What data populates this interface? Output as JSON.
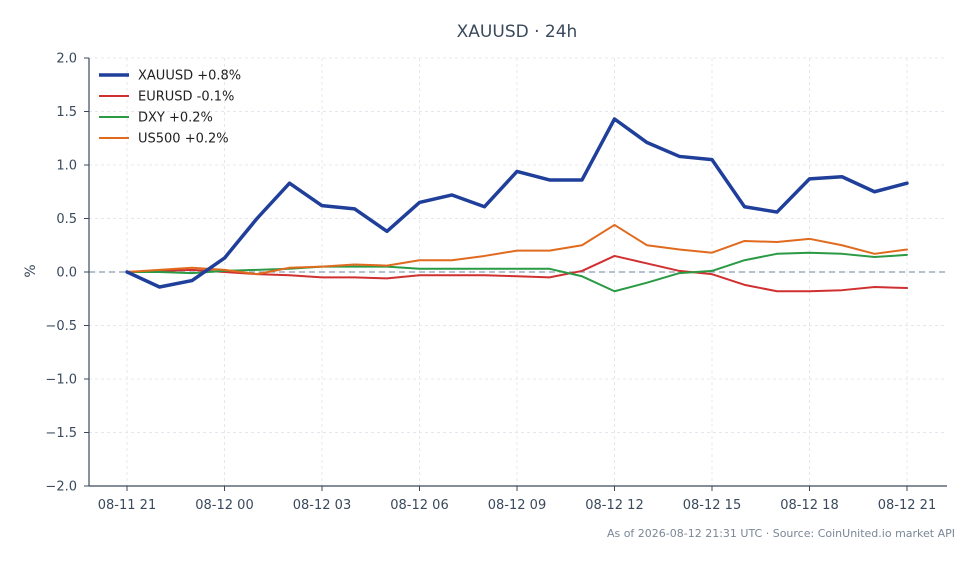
{
  "chart_data": {
    "type": "line",
    "title": "XAUUSD · 24h",
    "ylabel": "%",
    "xlabel": "",
    "ylim": [
      -2.0,
      2.0
    ],
    "yticks": [
      "2.0",
      "1.5",
      "1.0",
      "0.5",
      "0.0",
      "−0.5",
      "−1.0",
      "−1.5",
      "−2.0"
    ],
    "ytick_values": [
      2.0,
      1.5,
      1.0,
      0.5,
      0.0,
      -0.5,
      -1.0,
      -1.5,
      -2.0
    ],
    "xticks": [
      "08-11 21",
      "08-12 00",
      "08-12 03",
      "08-12 06",
      "08-12 09",
      "08-12 12",
      "08-12 15",
      "08-12 18",
      "08-12 21"
    ],
    "xtick_hours": [
      0,
      3,
      6,
      9,
      12,
      15,
      18,
      21,
      24
    ],
    "x_hours": [
      0,
      1,
      2,
      3,
      4,
      5,
      6,
      7,
      8,
      9,
      10,
      11,
      12,
      13,
      14,
      15,
      16,
      17,
      18,
      19,
      20,
      21,
      22,
      23,
      24
    ],
    "grid": true,
    "zero_line": true,
    "legend_position": "top-left",
    "footer": "As of 2026-08-12 21:31 UTC · Source: CoinUnited.io market API",
    "series": [
      {
        "name": "XAUUSD +0.8%",
        "color": "#1f3f9a",
        "width": 3.5,
        "values": [
          0.0,
          -0.14,
          -0.08,
          0.13,
          0.5,
          0.83,
          0.62,
          0.59,
          0.38,
          0.65,
          0.72,
          0.61,
          0.94,
          0.86,
          0.86,
          1.43,
          1.21,
          1.08,
          1.05,
          0.61,
          0.56,
          0.87,
          0.89,
          0.75,
          0.83
        ]
      },
      {
        "name": "EURUSD -0.1%",
        "color": "#d03030",
        "width": 2,
        "values": [
          0.0,
          0.01,
          0.02,
          0.0,
          -0.02,
          -0.03,
          -0.05,
          -0.05,
          -0.06,
          -0.03,
          -0.03,
          -0.03,
          -0.04,
          -0.05,
          0.01,
          0.15,
          0.08,
          0.01,
          -0.02,
          -0.12,
          -0.18,
          -0.18,
          -0.17,
          -0.14,
          -0.15
        ]
      },
      {
        "name": "DXY +0.2%",
        "color": "#2a9a44",
        "width": 2,
        "values": [
          0.0,
          0.0,
          -0.01,
          0.01,
          0.02,
          0.03,
          0.05,
          0.05,
          0.05,
          0.03,
          0.03,
          0.03,
          0.03,
          0.03,
          -0.04,
          -0.18,
          -0.1,
          -0.01,
          0.01,
          0.11,
          0.17,
          0.18,
          0.17,
          0.14,
          0.16
        ]
      },
      {
        "name": "US500 +0.2%",
        "color": "#e06a1e",
        "width": 2,
        "values": [
          0.0,
          0.02,
          0.04,
          0.02,
          -0.02,
          0.04,
          0.05,
          0.07,
          0.06,
          0.11,
          0.11,
          0.15,
          0.2,
          0.2,
          0.25,
          0.44,
          0.25,
          0.21,
          0.18,
          0.29,
          0.28,
          0.31,
          0.25,
          0.17,
          0.21
        ]
      }
    ]
  },
  "colors": {
    "axis": "#3a4a5c",
    "text": "#3a4a5c",
    "title": "#3a4a5c",
    "grid": "#e4e8ee",
    "zero_line": "#8a9ab0",
    "footer": "#7a8796"
  }
}
